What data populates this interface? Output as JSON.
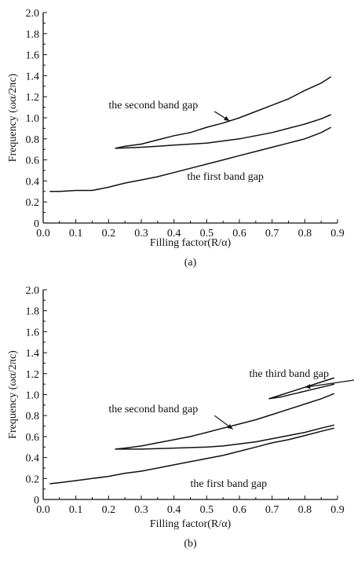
{
  "chart_data": [
    {
      "type": "line",
      "panel_label": "(a)",
      "xlabel": "Filling factor(R/α)",
      "ylabel": "Frequency (ωα/2πc)",
      "xlim": [
        0.0,
        0.9
      ],
      "ylim": [
        0.0,
        2.0
      ],
      "xticks": [
        "0.0",
        "0.1",
        "0.2",
        "0.3",
        "0.4",
        "0.5",
        "0.6",
        "0.7",
        "0.8",
        "0.9"
      ],
      "yticks": [
        "0",
        "0.2",
        "0.4",
        "0.6",
        "0.8",
        "1.0",
        "1.2",
        "1.4",
        "1.6",
        "1.8",
        "2.0"
      ],
      "grid": false,
      "series": [
        {
          "x": [
            0.02,
            0.05,
            0.1,
            0.15,
            0.2,
            0.25,
            0.3,
            0.35,
            0.4,
            0.45,
            0.5,
            0.55,
            0.6,
            0.65,
            0.7,
            0.75,
            0.8,
            0.85,
            0.88
          ],
          "y": [
            0.3,
            0.3,
            0.31,
            0.31,
            0.34,
            0.38,
            0.41,
            0.44,
            0.48,
            0.52,
            0.56,
            0.6,
            0.64,
            0.68,
            0.72,
            0.76,
            0.8,
            0.86,
            0.91
          ]
        },
        {
          "x": [
            0.22,
            0.3,
            0.35,
            0.4,
            0.45,
            0.5,
            0.55,
            0.6,
            0.65,
            0.7,
            0.75,
            0.8,
            0.85,
            0.88
          ],
          "y": [
            0.71,
            0.72,
            0.73,
            0.74,
            0.75,
            0.76,
            0.78,
            0.8,
            0.83,
            0.86,
            0.9,
            0.94,
            0.99,
            1.03
          ]
        },
        {
          "x": [
            0.22,
            0.25,
            0.3,
            0.35,
            0.4,
            0.45,
            0.5,
            0.55,
            0.6,
            0.65,
            0.7,
            0.75,
            0.8,
            0.85,
            0.88
          ],
          "y": [
            0.71,
            0.73,
            0.75,
            0.79,
            0.83,
            0.86,
            0.91,
            0.95,
            1.0,
            1.06,
            1.12,
            1.18,
            1.26,
            1.33,
            1.39
          ]
        }
      ],
      "annotations": [
        {
          "text": "the second band gap",
          "at": [
            0.2,
            1.09
          ],
          "arrow_to": [
            0.57,
            0.97
          ]
        },
        {
          "text": "the first band gap",
          "at": [
            0.44,
            0.41
          ],
          "arrow_to": null
        }
      ]
    },
    {
      "type": "line",
      "panel_label": "(b)",
      "xlabel": "Filling factor(R/α)",
      "ylabel": "Frequency (ωα/2πc)",
      "xlim": [
        0.0,
        0.9
      ],
      "ylim": [
        0.0,
        2.0
      ],
      "xticks": [
        "0.0",
        "0.1",
        "0.2",
        "0.3",
        "0.4",
        "0.5",
        "0.6",
        "0.7",
        "0.8",
        "0.9"
      ],
      "yticks": [
        "0",
        "0.2",
        "0.4",
        "0.6",
        "0.8",
        "1.0",
        "1.2",
        "1.4",
        "1.6",
        "1.8",
        "2.0"
      ],
      "grid": false,
      "series": [
        {
          "x": [
            0.02,
            0.05,
            0.1,
            0.15,
            0.2,
            0.25,
            0.3,
            0.35,
            0.4,
            0.45,
            0.5,
            0.55,
            0.6,
            0.65,
            0.7,
            0.75,
            0.8,
            0.85,
            0.89
          ],
          "y": [
            0.15,
            0.16,
            0.18,
            0.2,
            0.22,
            0.25,
            0.27,
            0.3,
            0.33,
            0.36,
            0.39,
            0.42,
            0.46,
            0.5,
            0.54,
            0.57,
            0.61,
            0.65,
            0.68
          ]
        },
        {
          "x": [
            0.22,
            0.3,
            0.4,
            0.5,
            0.55,
            0.6,
            0.65,
            0.7,
            0.75,
            0.8,
            0.85,
            0.89
          ],
          "y": [
            0.48,
            0.48,
            0.49,
            0.5,
            0.51,
            0.53,
            0.55,
            0.58,
            0.61,
            0.64,
            0.68,
            0.71
          ]
        },
        {
          "x": [
            0.22,
            0.25,
            0.3,
            0.35,
            0.4,
            0.45,
            0.5,
            0.55,
            0.6,
            0.65,
            0.7,
            0.75,
            0.8,
            0.85,
            0.89
          ],
          "y": [
            0.48,
            0.49,
            0.51,
            0.54,
            0.57,
            0.6,
            0.64,
            0.68,
            0.72,
            0.76,
            0.81,
            0.86,
            0.91,
            0.96,
            1.01
          ]
        },
        {
          "x": [
            0.69,
            0.73,
            0.77,
            0.81,
            0.85,
            0.89
          ],
          "y": [
            0.96,
            0.98,
            1.01,
            1.04,
            1.07,
            1.1
          ]
        },
        {
          "x": [
            0.69,
            0.73,
            0.77,
            0.81,
            0.85,
            0.89
          ],
          "y": [
            0.96,
            1.0,
            1.04,
            1.08,
            1.12,
            1.16
          ]
        }
      ],
      "annotations": [
        {
          "text": "the third band gap",
          "at": [
            0.63,
            1.17
          ],
          "arrow_to": [
            0.8,
            1.07
          ]
        },
        {
          "text": "the second band gap",
          "at": [
            0.2,
            0.83
          ],
          "arrow_to": [
            0.58,
            0.67
          ]
        },
        {
          "text": "the first band gap",
          "at": [
            0.45,
            0.12
          ],
          "arrow_to": null
        }
      ]
    }
  ]
}
